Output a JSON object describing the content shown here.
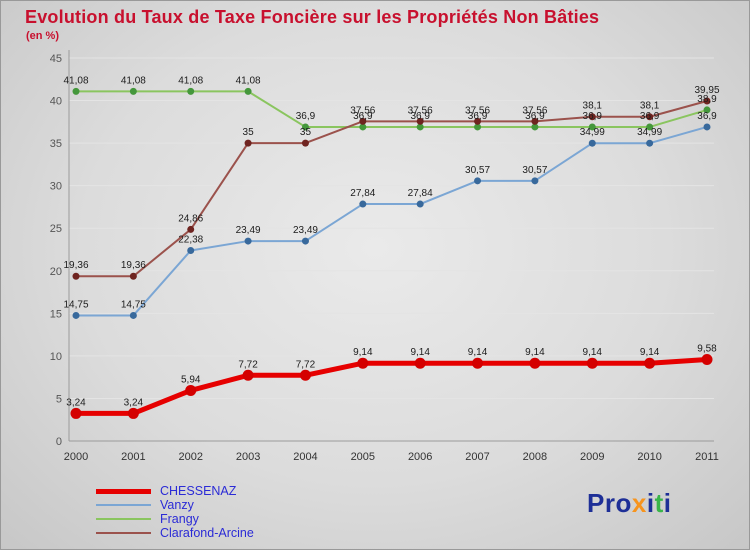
{
  "chart_data": {
    "type": "line",
    "title": "Evolution du Taux de Taxe Foncière sur les Propriétés Non Bâties",
    "subtitle": "(en %)",
    "categories": [
      "2000",
      "2001",
      "2002",
      "2003",
      "2004",
      "2005",
      "2006",
      "2007",
      "2008",
      "2009",
      "2010",
      "2011"
    ],
    "ylim": [
      0,
      45
    ],
    "yticks": [
      0,
      5,
      10,
      15,
      20,
      25,
      30,
      35,
      40,
      45
    ],
    "grid": true,
    "legend_position": "bottom-left",
    "series": [
      {
        "name": "CHESSENAZ",
        "color": "#e60000",
        "dot_color": "#d40000",
        "line_width": 5,
        "dot_radius": 5.5,
        "values": [
          3.24,
          3.24,
          5.94,
          7.72,
          7.72,
          9.14,
          9.14,
          9.14,
          9.14,
          9.14,
          9.14,
          9.58
        ],
        "labels": [
          "3,24",
          "3,24",
          "5,94",
          "7,72",
          "7,72",
          "9,14",
          "9,14",
          "9,14",
          "9,14",
          "9,14",
          "9,14",
          "9,58"
        ]
      },
      {
        "name": "Vanzy",
        "color": "#7ba6d4",
        "dot_color": "#38699c",
        "line_width": 2,
        "dot_radius": 3.5,
        "values": [
          14.75,
          14.75,
          22.38,
          23.49,
          23.49,
          27.84,
          27.84,
          30.57,
          30.57,
          34.99,
          34.99,
          36.9
        ],
        "labels": [
          "14,75",
          "14,75",
          "22,38",
          "23,49",
          "23,49",
          "27,84",
          "27,84",
          "30,57",
          "30,57",
          "34,99",
          "34,99",
          "36,9"
        ]
      },
      {
        "name": "Frangy",
        "color": "#8ac55f",
        "dot_color": "#44973b",
        "line_width": 2,
        "dot_radius": 3.5,
        "values": [
          41.08,
          41.08,
          41.08,
          41.08,
          36.9,
          36.9,
          36.9,
          36.9,
          36.9,
          36.9,
          36.9,
          38.9
        ],
        "labels": [
          "41,08",
          "41,08",
          "41,08",
          "41,08",
          "36,9",
          "36,9",
          "36,9",
          "36,9",
          "36,9",
          "36,9",
          "36,9",
          "38,9"
        ]
      },
      {
        "name": "Clarafond-Arcine",
        "color": "#9b524c",
        "dot_color": "#6f2420",
        "line_width": 2,
        "dot_radius": 3.5,
        "values": [
          19.36,
          19.36,
          24.86,
          35,
          35,
          37.56,
          37.56,
          37.56,
          37.56,
          38.1,
          38.1,
          39.95
        ],
        "labels": [
          "19,36",
          "19,36",
          "24,86",
          "35",
          "35",
          "37,56",
          "37,56",
          "37,56",
          "37,56",
          "38,1",
          "38,1",
          "39,95"
        ]
      }
    ],
    "draw_order": [
      2,
      1,
      3,
      0
    ]
  },
  "logo": {
    "name": "Proxiti",
    "letters": [
      {
        "ch": "P",
        "color": "#1e2f97"
      },
      {
        "ch": "r",
        "color": "#1e2f97"
      },
      {
        "ch": "o",
        "color": "#1e2f97"
      },
      {
        "ch": "x",
        "color": "#f7941d"
      },
      {
        "ch": "i",
        "color": "#1e2f97"
      },
      {
        "ch": "t",
        "color": "#3ab54a"
      },
      {
        "ch": "i",
        "color": "#1e2f97"
      }
    ]
  }
}
